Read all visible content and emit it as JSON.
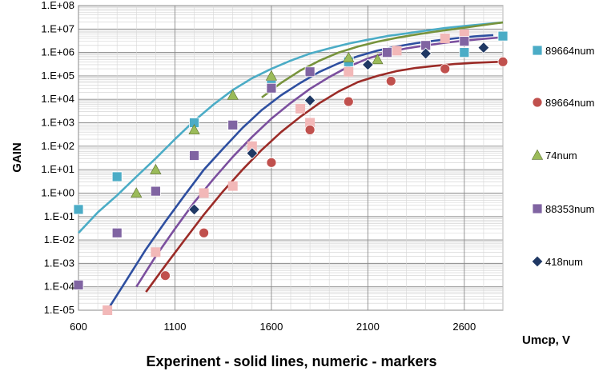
{
  "chart_data": {
    "type": "scatter",
    "title": "",
    "xlabel": "Experinent - solid lines, numeric - markers",
    "ylabel": "GAIN",
    "x_unit_label": "Umcp, V",
    "xlim": [
      600,
      2800
    ],
    "ylim_log10": [
      -5,
      8
    ],
    "y_scale": "log",
    "grid": true,
    "x_ticks": [
      600,
      1100,
      1600,
      2100,
      2600
    ],
    "x_tick_labels": [
      "600",
      "1100",
      "1600",
      "2100",
      "2600"
    ],
    "y_ticks": [
      -5,
      -4,
      -3,
      -2,
      -1,
      0,
      1,
      2,
      3,
      4,
      5,
      6,
      7,
      8
    ],
    "y_tick_labels": [
      "1.E-05",
      "1.E-04",
      "1.E-03",
      "1.E-02",
      "1.E-01",
      "1.E+00",
      "1.E+01",
      "1.E+02",
      "1.E+03",
      "1.E+04",
      "1.E+05",
      "1.E+06",
      "1.E+07",
      "1.E+08"
    ],
    "legend_position": "right",
    "series": [
      {
        "name": "89664num",
        "color": "#4BACC6",
        "marker": "square",
        "points": [
          [
            600,
            0.2
          ],
          [
            800,
            5
          ],
          [
            1200,
            1000
          ],
          [
            1600,
            40000
          ],
          [
            2000,
            400000
          ],
          [
            2600,
            1000000
          ],
          [
            2800,
            5000000
          ]
        ]
      },
      {
        "name": "89664num",
        "color": "#C0504D",
        "marker": "circle",
        "points": [
          [
            1050,
            0.0003
          ],
          [
            1250,
            0.02
          ],
          [
            1600,
            20
          ],
          [
            1800,
            500
          ],
          [
            2000,
            8000
          ],
          [
            2220,
            60000
          ],
          [
            2500,
            200000
          ],
          [
            2800,
            400000
          ]
        ]
      },
      {
        "name": "74num",
        "color": "#9BBB59",
        "marker": "triangle",
        "points": [
          [
            900,
            1
          ],
          [
            1000,
            10
          ],
          [
            1200,
            500
          ],
          [
            1400,
            15000
          ],
          [
            1600,
            100000
          ],
          [
            2000,
            600000
          ],
          [
            2150,
            500000
          ]
        ]
      },
      {
        "name": "88353num",
        "color": "#8064A2",
        "marker": "square",
        "points": [
          [
            600,
            0.00012
          ],
          [
            800,
            0.02
          ],
          [
            1000,
            1.2
          ],
          [
            1200,
            40
          ],
          [
            1400,
            800
          ],
          [
            1600,
            30000
          ],
          [
            1800,
            150000
          ],
          [
            2200,
            1000000
          ],
          [
            2400,
            2000000
          ],
          [
            2600,
            3000000
          ]
        ]
      },
      {
        "name": "418num",
        "color": "#1F3864",
        "marker": "diamond",
        "points": [
          [
            1200,
            0.2
          ],
          [
            1500,
            50
          ],
          [
            1800,
            9000
          ],
          [
            2100,
            300000
          ],
          [
            2400,
            900000
          ],
          [
            2700,
            1600000
          ]
        ]
      }
    ],
    "unlabeled_markers": {
      "color": "#F2B8B8",
      "points": [
        [
          750,
          1e-05
        ],
        [
          1000,
          0.003
        ],
        [
          1250,
          1
        ],
        [
          1400,
          2
        ],
        [
          1500,
          100
        ],
        [
          1750,
          4000
        ],
        [
          1800,
          1000
        ],
        [
          2000,
          150000
        ],
        [
          2250,
          1200000
        ],
        [
          2500,
          4000000
        ],
        [
          2600,
          6000000
        ]
      ]
    },
    "experiment_curves": [
      {
        "color": "#4BACC6",
        "points": [
          [
            600,
            0.02
          ],
          [
            700,
            0.15
          ],
          [
            800,
            0.8
          ],
          [
            900,
            5
          ],
          [
            1000,
            30
          ],
          [
            1100,
            200
          ],
          [
            1200,
            1200
          ],
          [
            1300,
            6000
          ],
          [
            1400,
            25000
          ],
          [
            1500,
            80000
          ],
          [
            1600,
            200000
          ],
          [
            1700,
            450000
          ],
          [
            1800,
            900000
          ],
          [
            1900,
            1500000
          ],
          [
            2000,
            2400000
          ],
          [
            2100,
            3500000
          ],
          [
            2200,
            5000000
          ],
          [
            2300,
            6500000
          ],
          [
            2400,
            8500000
          ],
          [
            2500,
            11000000
          ],
          [
            2600,
            13500000
          ],
          [
            2700,
            16000000
          ],
          [
            2800,
            19000000
          ]
        ]
      },
      {
        "color": "#77933C",
        "points": [
          [
            1550,
            12000
          ],
          [
            1650,
            50000
          ],
          [
            1750,
            170000
          ],
          [
            1850,
            450000
          ],
          [
            1950,
            1000000
          ],
          [
            2050,
            1800000
          ],
          [
            2150,
            2900000
          ],
          [
            2250,
            4200000
          ],
          [
            2350,
            5800000
          ],
          [
            2450,
            7800000
          ],
          [
            2550,
            10000000
          ],
          [
            2650,
            13000000
          ],
          [
            2750,
            17000000
          ],
          [
            2800,
            19000000
          ]
        ]
      },
      {
        "color": "#2E4FA0",
        "points": [
          [
            750,
            1e-05
          ],
          [
            850,
            0.0002
          ],
          [
            950,
            0.004
          ],
          [
            1050,
            0.06
          ],
          [
            1150,
            0.8
          ],
          [
            1250,
            10
          ],
          [
            1350,
            80
          ],
          [
            1450,
            600
          ],
          [
            1550,
            3500
          ],
          [
            1650,
            15000
          ],
          [
            1750,
            50000
          ],
          [
            1850,
            150000
          ],
          [
            1950,
            350000
          ],
          [
            2050,
            700000
          ],
          [
            2150,
            1200000
          ],
          [
            2250,
            1800000
          ],
          [
            2350,
            2500000
          ],
          [
            2450,
            3200000
          ],
          [
            2550,
            4000000
          ],
          [
            2650,
            4800000
          ],
          [
            2750,
            5500000
          ]
        ]
      },
      {
        "color": "#7B4F9E",
        "points": [
          [
            900,
            0.0001
          ],
          [
            1000,
            0.002
          ],
          [
            1100,
            0.03
          ],
          [
            1200,
            0.4
          ],
          [
            1300,
            4
          ],
          [
            1400,
            35
          ],
          [
            1500,
            250
          ],
          [
            1600,
            1500
          ],
          [
            1700,
            7000
          ],
          [
            1800,
            28000
          ],
          [
            1900,
            90000
          ],
          [
            2000,
            250000
          ],
          [
            2100,
            550000
          ],
          [
            2200,
            1000000
          ],
          [
            2300,
            1500000
          ],
          [
            2400,
            2000000
          ],
          [
            2500,
            2600000
          ],
          [
            2600,
            3200000
          ],
          [
            2700,
            3800000
          ],
          [
            2780,
            4300000
          ]
        ]
      },
      {
        "color": "#9B2B27",
        "points": [
          [
            950,
            6e-05
          ],
          [
            1050,
            0.0008
          ],
          [
            1150,
            0.01
          ],
          [
            1250,
            0.12
          ],
          [
            1350,
            1.2
          ],
          [
            1450,
            10
          ],
          [
            1550,
            70
          ],
          [
            1650,
            400
          ],
          [
            1750,
            1800
          ],
          [
            1850,
            7000
          ],
          [
            1950,
            22000
          ],
          [
            2050,
            55000
          ],
          [
            2150,
            100000
          ],
          [
            2250,
            160000
          ],
          [
            2350,
            220000
          ],
          [
            2450,
            270000
          ],
          [
            2550,
            320000
          ],
          [
            2650,
            360000
          ],
          [
            2780,
            400000
          ]
        ]
      }
    ]
  }
}
